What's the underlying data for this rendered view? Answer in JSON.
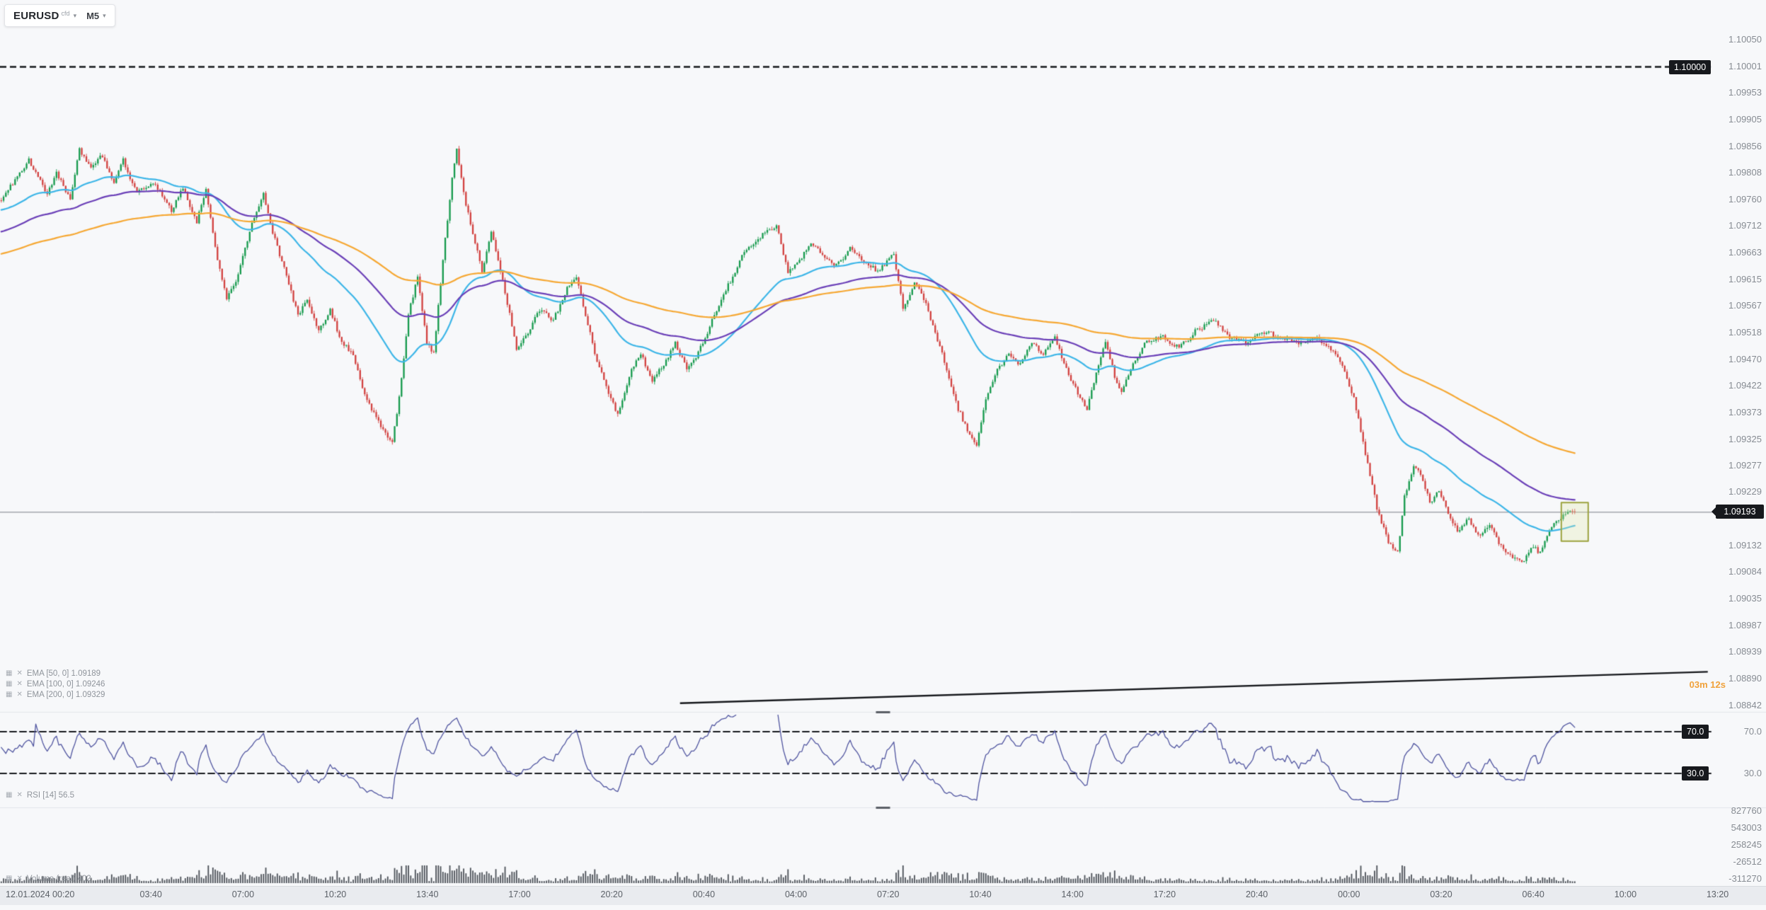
{
  "symbol_bar": {
    "symbol": "EURUSD",
    "type_tag": "cfd",
    "timeframe": "M5"
  },
  "tags": {
    "level": "1.10000",
    "current_price": "1.09193",
    "rsi_upper": "70.0",
    "rsi_lower": "30.0"
  },
  "countdown": {
    "text": "03m 12s"
  },
  "legends": {
    "main": [
      "EMA  [50, 0]  1.09189",
      "EMA  [100, 0]  1.09246",
      "EMA  [200, 0]  1.09329"
    ],
    "rsi": "RSI  [14]  56.5",
    "volume": "Volume  (real)  402"
  },
  "price_axis": {
    "labels": [
      "1.10050",
      "1.10001",
      "1.09953",
      "1.09905",
      "1.09856",
      "1.09808",
      "1.09760",
      "1.09712",
      "1.09663",
      "1.09615",
      "1.09567",
      "1.09518",
      "1.09470",
      "1.09422",
      "1.09373",
      "1.09325",
      "1.09277",
      "1.09229",
      "1.09132",
      "1.09084",
      "1.09035",
      "1.08987",
      "1.08939",
      "1.08890",
      "1.08842"
    ]
  },
  "rsi_axis": [
    "70.0",
    "30.0"
  ],
  "volume_axis": {
    "labels": [
      "827760",
      "543003",
      "258245",
      "-26512",
      "-311270"
    ]
  },
  "time_axis": {
    "labels": [
      "12.01.2024 00:20",
      "03:40",
      "07:00",
      "10:20",
      "13:40",
      "17:00",
      "20:20",
      "00:40",
      "04:00",
      "07:20",
      "10:40",
      "14:00",
      "17:20",
      "20:40",
      "00:00",
      "03:20",
      "06:40",
      "10:00",
      "13:20"
    ]
  },
  "colors": {
    "background": "#f7f8fa",
    "candle_up": "#159a4c",
    "candle_down": "#d2413f",
    "ema50": "#3db6e8",
    "ema100": "#6b40b8",
    "ema200": "#f6a833",
    "rsi_line": "#5055a0",
    "line_black": "#16181c",
    "current_price_line": "#7a7e85",
    "volume_bar": "#4b5057",
    "countdown": "#f0a13a",
    "highlight_border": "#9ca33f",
    "highlight_fill": "rgba(226,231,173,0.30)",
    "tag_bg": "#17191d",
    "divider": "#e3e6ea",
    "handle": "#5a5f66"
  },
  "chart_data": {
    "type": "candlestick",
    "symbol": "EURUSD",
    "timeframe": "M5",
    "candle_count": 685,
    "visible_price_range": [
      1.08838,
      1.1007
    ],
    "level_line": 1.1,
    "current_price": 1.09193,
    "price_anchors": [
      [
        0,
        1.0976
      ],
      [
        7,
        1.098
      ],
      [
        12,
        1.0983
      ],
      [
        20,
        1.0977
      ],
      [
        24,
        1.0981
      ],
      [
        30,
        1.0976
      ],
      [
        34,
        1.0985
      ],
      [
        39,
        1.0982
      ],
      [
        44,
        1.0984
      ],
      [
        49,
        1.0979
      ],
      [
        53,
        1.0983
      ],
      [
        59,
        1.0977
      ],
      [
        66,
        1.0979
      ],
      [
        74,
        1.0974
      ],
      [
        79,
        1.0978
      ],
      [
        85,
        1.0972
      ],
      [
        89,
        1.0978
      ],
      [
        94,
        1.0965
      ],
      [
        98,
        1.0958
      ],
      [
        103,
        1.0962
      ],
      [
        109,
        1.0972
      ],
      [
        114,
        1.0977
      ],
      [
        118,
        1.097
      ],
      [
        124,
        1.0962
      ],
      [
        129,
        1.0955
      ],
      [
        133,
        1.0958
      ],
      [
        138,
        1.0952
      ],
      [
        143,
        1.0956
      ],
      [
        148,
        1.095
      ],
      [
        153,
        1.0948
      ],
      [
        157,
        1.0942
      ],
      [
        161,
        1.0938
      ],
      [
        166,
        1.0934
      ],
      [
        170,
        1.0932
      ],
      [
        173,
        1.094
      ],
      [
        177,
        1.0955
      ],
      [
        181,
        1.0962
      ],
      [
        185,
        1.095
      ],
      [
        188,
        1.0948
      ],
      [
        192,
        1.0965
      ],
      [
        196,
        1.098
      ],
      [
        198,
        1.0985
      ],
      [
        202,
        1.0975
      ],
      [
        206,
        1.0968
      ],
      [
        209,
        1.0963
      ],
      [
        213,
        1.097
      ],
      [
        217,
        1.0963
      ],
      [
        221,
        1.0955
      ],
      [
        224,
        1.0949
      ],
      [
        229,
        1.0952
      ],
      [
        234,
        1.0956
      ],
      [
        240,
        1.0954
      ],
      [
        246,
        1.096
      ],
      [
        250,
        1.0962
      ],
      [
        254,
        1.0955
      ],
      [
        258,
        1.0948
      ],
      [
        263,
        1.0942
      ],
      [
        268,
        1.0937
      ],
      [
        273,
        1.0944
      ],
      [
        278,
        1.0948
      ],
      [
        283,
        1.0943
      ],
      [
        288,
        1.0946
      ],
      [
        293,
        1.095
      ],
      [
        298,
        1.0945
      ],
      [
        303,
        1.0948
      ],
      [
        308,
        1.0953
      ],
      [
        313,
        1.0958
      ],
      [
        318,
        1.0962
      ],
      [
        322,
        1.0966
      ],
      [
        327,
        1.0968
      ],
      [
        332,
        1.097
      ],
      [
        337,
        1.0971
      ],
      [
        342,
        1.0963
      ],
      [
        347,
        1.0965
      ],
      [
        352,
        1.0968
      ],
      [
        357,
        1.0966
      ],
      [
        363,
        1.0964
      ],
      [
        369,
        1.0967
      ],
      [
        375,
        1.0965
      ],
      [
        381,
        1.0963
      ],
      [
        388,
        1.0966
      ],
      [
        392,
        1.0956
      ],
      [
        397,
        1.0961
      ],
      [
        401,
        1.0958
      ],
      [
        406,
        1.0952
      ],
      [
        411,
        1.0945
      ],
      [
        416,
        1.0938
      ],
      [
        421,
        1.0933
      ],
      [
        424,
        1.0931
      ],
      [
        428,
        1.094
      ],
      [
        433,
        1.0945
      ],
      [
        438,
        1.0948
      ],
      [
        443,
        1.0946
      ],
      [
        448,
        1.095
      ],
      [
        453,
        1.0948
      ],
      [
        458,
        1.0951
      ],
      [
        463,
        1.0945
      ],
      [
        468,
        1.0941
      ],
      [
        472,
        1.0938
      ],
      [
        477,
        1.0946
      ],
      [
        480,
        1.095
      ],
      [
        484,
        1.0944
      ],
      [
        487,
        1.0941
      ],
      [
        492,
        1.0946
      ],
      [
        497,
        1.095
      ],
      [
        505,
        1.0951
      ],
      [
        512,
        1.0949
      ],
      [
        519,
        1.0952
      ],
      [
        527,
        1.0954
      ],
      [
        534,
        1.0951
      ],
      [
        542,
        1.095
      ],
      [
        549,
        1.0952
      ],
      [
        556,
        1.0951
      ],
      [
        564,
        1.095
      ],
      [
        571,
        1.0951
      ],
      [
        578,
        1.0949
      ],
      [
        583,
        1.0946
      ],
      [
        588,
        1.094
      ],
      [
        593,
        1.093
      ],
      [
        598,
        1.092
      ],
      [
        603,
        1.0914
      ],
      [
        607,
        1.0912
      ],
      [
        610,
        1.0922
      ],
      [
        614,
        1.0928
      ],
      [
        618,
        1.0925
      ],
      [
        621,
        1.0921
      ],
      [
        625,
        1.0923
      ],
      [
        629,
        1.0919
      ],
      [
        633,
        1.0916
      ],
      [
        638,
        1.0918
      ],
      [
        642,
        1.0915
      ],
      [
        647,
        1.0917
      ],
      [
        652,
        1.0913
      ],
      [
        657,
        1.0911
      ],
      [
        662,
        1.091
      ],
      [
        665,
        1.0913
      ],
      [
        669,
        1.0912
      ],
      [
        673,
        1.0916
      ],
      [
        677,
        1.0918
      ],
      [
        681,
        1.09193
      ],
      [
        684,
        1.09193
      ]
    ],
    "emas": [
      {
        "period": 50,
        "color_key": "ema50",
        "seed": 1.0974,
        "last": 1.09189
      },
      {
        "period": 100,
        "color_key": "ema100",
        "seed": 1.097,
        "last": 1.09246
      },
      {
        "period": 200,
        "color_key": "ema200",
        "seed": 1.0966,
        "last": 1.09329
      }
    ],
    "rsi": {
      "period": 14,
      "bands": [
        70,
        30
      ],
      "last": 56.5
    },
    "volume": {
      "last": 402
    },
    "trend_line": {
      "x1_frac": 0.397,
      "price1": 1.08846,
      "x2_frac": 0.997,
      "price2": 1.08903
    },
    "highlight_box": {
      "price_top": 1.0921,
      "price_bottom": 1.0914
    }
  }
}
